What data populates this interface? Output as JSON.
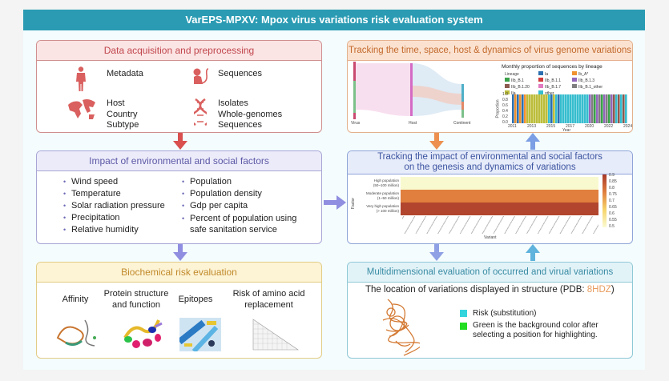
{
  "title": "VarEPS-MPXV:  Mpox virus variations risk evaluation system",
  "data_acq": {
    "title": "Data acquisition and preprocessing",
    "items": [
      {
        "icon": "human-icon",
        "text": "Metadata"
      },
      {
        "icon": "monkey-icon",
        "text": "Sequences"
      },
      {
        "icon": "world-map-icon",
        "lines": [
          "Host",
          "Country",
          "Subtype"
        ]
      },
      {
        "icon": "dna-icon",
        "lines": [
          "Isolates",
          "Whole-genomes",
          "Sequences"
        ]
      }
    ]
  },
  "env": {
    "title": "Impact of environmental and social factors",
    "left": [
      "Wind speed",
      "Temperature",
      "Solar radiation pressure",
      "Precipitation",
      "Relative humidity"
    ],
    "right": [
      "Population",
      "Population density",
      "Gdp per capita",
      "Percent of population using",
      "safe sanitation service"
    ]
  },
  "bio": {
    "title": "Biochemical risk evaluation",
    "items": [
      "Affinity",
      "Protein structure and function",
      "Epitopes",
      "Risk of amino acid replacement"
    ]
  },
  "tracking": {
    "title": "Tracking the time, space, host & dynamics of virus genome variations",
    "sankey_axes": [
      "Virus",
      "Host",
      "Continent"
    ],
    "lineage_chart": {
      "title": "Monthly proportion of sequences by lineage",
      "legend_title": "Lineage",
      "legend": [
        {
          "name": "Ia",
          "color": "#2c6fb0"
        },
        {
          "name": "Ib_A*",
          "color": "#f0922f"
        },
        {
          "name": "IIb_B.1",
          "color": "#3aa04a"
        },
        {
          "name": "IIb_B.1.1",
          "color": "#d0393b"
        },
        {
          "name": "IIb_B.1.3",
          "color": "#9266bb"
        },
        {
          "name": "IIb_B.1.20",
          "color": "#8c5a4f"
        },
        {
          "name": "IIb_B.1.7",
          "color": "#e27ac0"
        },
        {
          "name": "IIb_B.1_other",
          "color": "#7f7f7f"
        },
        {
          "name": "IIa",
          "color": "#bcbd3a"
        },
        {
          "name": "other",
          "color": "#36bdcf"
        }
      ],
      "ylabel": "Proportion",
      "xlabel": "Year",
      "yticks": [
        "1.0",
        "0.8",
        "0.6",
        "0.4",
        "0.2",
        "0.0"
      ],
      "xticks": [
        "2011",
        "2013",
        "2015",
        "2017",
        "2020",
        "2022",
        "2024"
      ]
    }
  },
  "impact": {
    "title_line1": "Tracking the impact of environmental and social factors",
    "title_line2": "on the genesis and dynamics of variations",
    "ylabel": "Factor",
    "xlabel": "Variant",
    "rows": [
      {
        "label1": "High population",
        "label2": "(50~100 million)",
        "color": "#f8f9cf"
      },
      {
        "label1": "Moderate population",
        "label2": "(1~50 million)",
        "color": "#e07f3e"
      },
      {
        "label1": "Very high population",
        "label2": "(> 100 million)",
        "color": "#b1452e"
      }
    ],
    "colorbar_ticks": [
      "0.9",
      "0.85",
      "0.8",
      "0.75",
      "0.7",
      "0.65",
      "0.6",
      "0.55",
      "0.5"
    ]
  },
  "multi": {
    "title": "Multidimensional evaluation of occurred and virual variations",
    "structure_label": "The location of variations displayed in structure (PDB: ",
    "pdb": "8HDZ",
    "structure_close": ")",
    "legend": [
      {
        "color": "#33d4dc",
        "text": "Risk (substitution)"
      },
      {
        "color": "#22dd22",
        "text": "Green is the background color after selecting a position for highlighting."
      }
    ]
  }
}
